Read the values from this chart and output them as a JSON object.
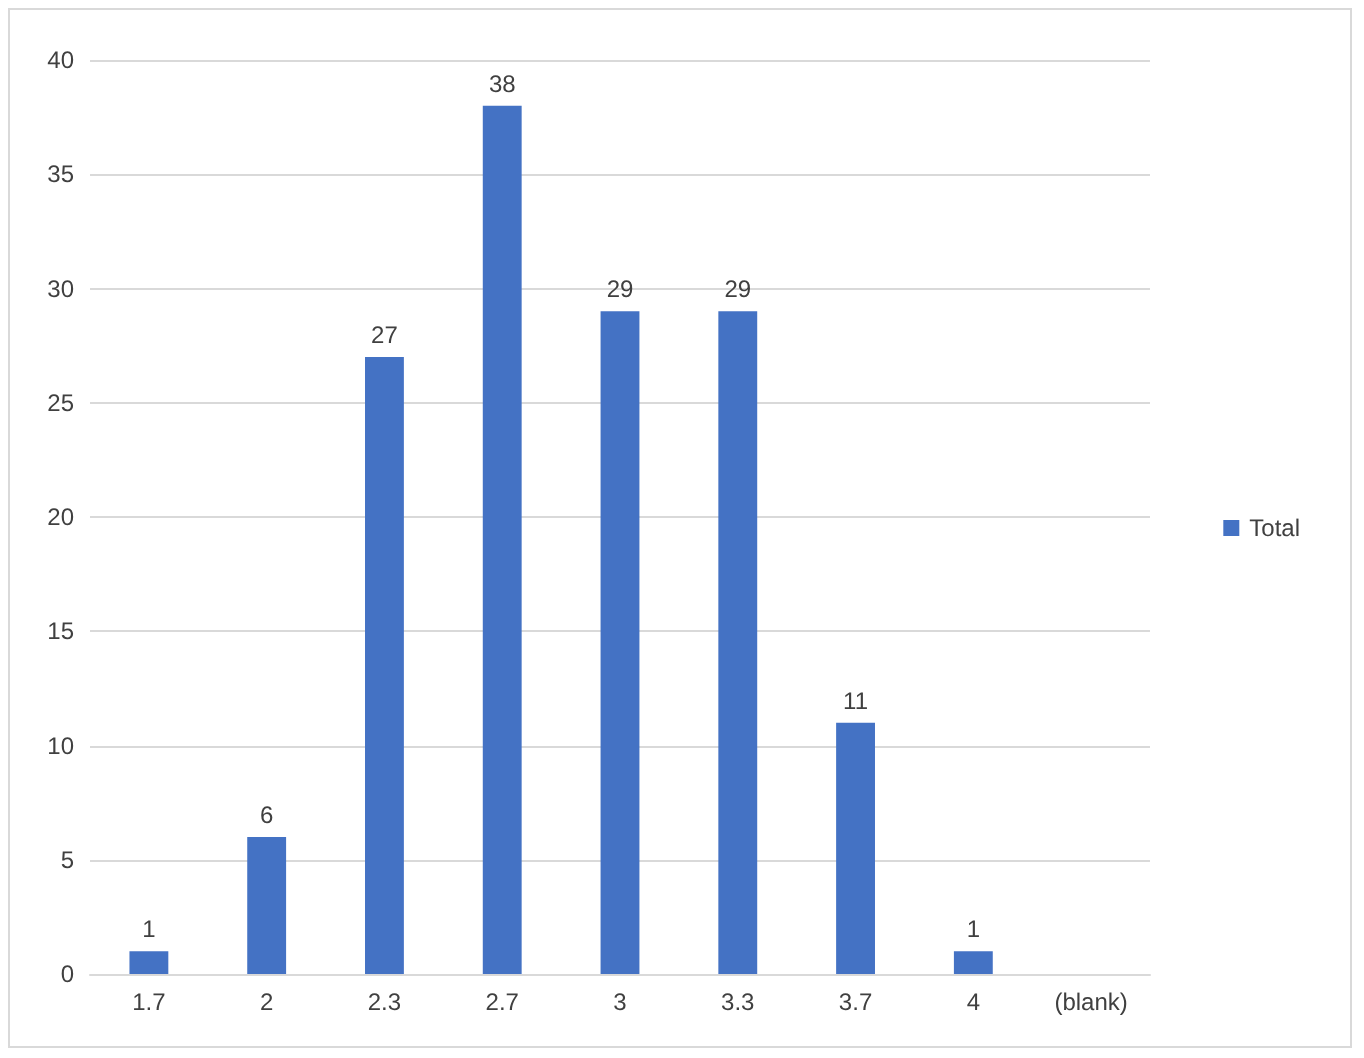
{
  "chart_data": {
    "type": "bar",
    "categories": [
      "1.7",
      "2",
      "2.3",
      "2.7",
      "3",
      "3.3",
      "3.7",
      "4",
      "(blank)"
    ],
    "series": [
      {
        "name": "Total",
        "color": "#4472c4",
        "values": [
          1,
          6,
          27,
          38,
          29,
          29,
          11,
          1,
          null
        ]
      }
    ],
    "ylim": [
      0,
      40
    ],
    "yticks": [
      0,
      5,
      10,
      15,
      20,
      25,
      30,
      35,
      40
    ],
    "grid": "y",
    "legend": "right",
    "data_labels": true
  }
}
